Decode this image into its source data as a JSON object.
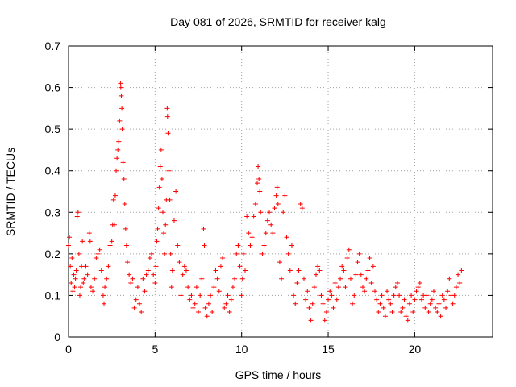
{
  "chart_data": {
    "type": "scatter",
    "title": "Day 081 of 2026, SRMTID for receiver kalg",
    "xlabel": "GPS time / hours",
    "ylabel": "SRMTID / TECUs",
    "xlim": [
      0,
      24.5
    ],
    "ylim": [
      0,
      0.7
    ],
    "xticks": [
      0,
      5,
      10,
      15,
      20
    ],
    "xtick_labels": [
      "0",
      "5",
      "10",
      "15",
      "20"
    ],
    "yticks": [
      0,
      0.1,
      0.2,
      0.3,
      0.4,
      0.5,
      0.6,
      0.7
    ],
    "ytick_labels": [
      "0",
      "0.1",
      "0.2",
      "0.3",
      "0.4",
      "0.5",
      "0.6",
      "0.7"
    ],
    "grid": true,
    "marker": "+",
    "color": "#ff0000",
    "series": [
      {
        "name": "SRMTID",
        "points": [
          [
            0.0,
            0.22
          ],
          [
            0.05,
            0.24
          ],
          [
            0.1,
            0.17
          ],
          [
            0.15,
            0.13
          ],
          [
            0.2,
            0.19
          ],
          [
            0.25,
            0.11
          ],
          [
            0.3,
            0.15
          ],
          [
            0.35,
            0.12
          ],
          [
            0.4,
            0.14
          ],
          [
            0.45,
            0.16
          ],
          [
            0.5,
            0.29
          ],
          [
            0.55,
            0.3
          ],
          [
            0.6,
            0.2
          ],
          [
            0.65,
            0.1
          ],
          [
            0.7,
            0.12
          ],
          [
            0.75,
            0.17
          ],
          [
            0.8,
            0.23
          ],
          [
            0.85,
            0.13
          ],
          [
            0.9,
            0.14
          ],
          [
            1.0,
            0.17
          ],
          [
            1.1,
            0.15
          ],
          [
            1.2,
            0.25
          ],
          [
            1.25,
            0.23
          ],
          [
            1.3,
            0.12
          ],
          [
            1.4,
            0.11
          ],
          [
            1.5,
            0.14
          ],
          [
            1.6,
            0.19
          ],
          [
            1.7,
            0.2
          ],
          [
            1.8,
            0.21
          ],
          [
            1.9,
            0.16
          ],
          [
            2.0,
            0.1
          ],
          [
            2.05,
            0.08
          ],
          [
            2.1,
            0.12
          ],
          [
            2.2,
            0.14
          ],
          [
            2.3,
            0.17
          ],
          [
            2.4,
            0.22
          ],
          [
            2.5,
            0.23
          ],
          [
            2.55,
            0.27
          ],
          [
            2.6,
            0.33
          ],
          [
            2.65,
            0.27
          ],
          [
            2.7,
            0.34
          ],
          [
            2.75,
            0.4
          ],
          [
            2.8,
            0.43
          ],
          [
            2.85,
            0.45
          ],
          [
            2.9,
            0.47
          ],
          [
            2.95,
            0.52
          ],
          [
            3.0,
            0.61
          ],
          [
            3.02,
            0.6
          ],
          [
            3.05,
            0.58
          ],
          [
            3.08,
            0.55
          ],
          [
            3.1,
            0.5
          ],
          [
            3.15,
            0.42
          ],
          [
            3.2,
            0.38
          ],
          [
            3.25,
            0.32
          ],
          [
            3.3,
            0.26
          ],
          [
            3.35,
            0.22
          ],
          [
            3.4,
            0.18
          ],
          [
            3.5,
            0.15
          ],
          [
            3.6,
            0.13
          ],
          [
            3.7,
            0.14
          ],
          [
            3.8,
            0.07
          ],
          [
            3.9,
            0.09
          ],
          [
            4.0,
            0.12
          ],
          [
            4.1,
            0.08
          ],
          [
            4.2,
            0.06
          ],
          [
            4.3,
            0.14
          ],
          [
            4.4,
            0.11
          ],
          [
            4.5,
            0.15
          ],
          [
            4.6,
            0.16
          ],
          [
            4.7,
            0.19
          ],
          [
            4.8,
            0.2
          ],
          [
            4.9,
            0.15
          ],
          [
            5.0,
            0.13
          ],
          [
            5.05,
            0.17
          ],
          [
            5.1,
            0.23
          ],
          [
            5.15,
            0.26
          ],
          [
            5.2,
            0.31
          ],
          [
            5.25,
            0.36
          ],
          [
            5.3,
            0.41
          ],
          [
            5.35,
            0.45
          ],
          [
            5.4,
            0.38
          ],
          [
            5.45,
            0.3
          ],
          [
            5.5,
            0.25
          ],
          [
            5.55,
            0.2
          ],
          [
            5.6,
            0.27
          ],
          [
            5.65,
            0.33
          ],
          [
            5.7,
            0.55
          ],
          [
            5.72,
            0.53
          ],
          [
            5.75,
            0.49
          ],
          [
            5.8,
            0.4
          ],
          [
            5.85,
            0.33
          ],
          [
            5.9,
            0.2
          ],
          [
            5.95,
            0.12
          ],
          [
            6.0,
            0.16
          ],
          [
            6.1,
            0.28
          ],
          [
            6.2,
            0.35
          ],
          [
            6.3,
            0.22
          ],
          [
            6.4,
            0.18
          ],
          [
            6.5,
            0.1
          ],
          [
            6.6,
            0.15
          ],
          [
            6.7,
            0.17
          ],
          [
            6.8,
            0.16
          ],
          [
            6.9,
            0.12
          ],
          [
            7.0,
            0.09
          ],
          [
            7.1,
            0.1
          ],
          [
            7.2,
            0.07
          ],
          [
            7.3,
            0.08
          ],
          [
            7.4,
            0.12
          ],
          [
            7.5,
            0.06
          ],
          [
            7.6,
            0.1
          ],
          [
            7.7,
            0.14
          ],
          [
            7.8,
            0.26
          ],
          [
            7.85,
            0.22
          ],
          [
            7.9,
            0.07
          ],
          [
            8.0,
            0.05
          ],
          [
            8.1,
            0.08
          ],
          [
            8.2,
            0.1
          ],
          [
            8.3,
            0.06
          ],
          [
            8.4,
            0.12
          ],
          [
            8.5,
            0.16
          ],
          [
            8.6,
            0.14
          ],
          [
            8.7,
            0.11
          ],
          [
            8.8,
            0.17
          ],
          [
            8.9,
            0.19
          ],
          [
            9.0,
            0.07
          ],
          [
            9.1,
            0.08
          ],
          [
            9.2,
            0.1
          ],
          [
            9.3,
            0.06
          ],
          [
            9.4,
            0.09
          ],
          [
            9.5,
            0.12
          ],
          [
            9.6,
            0.14
          ],
          [
            9.7,
            0.2
          ],
          [
            9.8,
            0.22
          ],
          [
            9.9,
            0.17
          ],
          [
            10.0,
            0.1
          ],
          [
            10.05,
            0.14
          ],
          [
            10.1,
            0.2
          ],
          [
            10.2,
            0.16
          ],
          [
            10.3,
            0.29
          ],
          [
            10.4,
            0.25
          ],
          [
            10.5,
            0.22
          ],
          [
            10.6,
            0.24
          ],
          [
            10.7,
            0.29
          ],
          [
            10.8,
            0.32
          ],
          [
            10.9,
            0.37
          ],
          [
            10.95,
            0.41
          ],
          [
            11.0,
            0.38
          ],
          [
            11.05,
            0.35
          ],
          [
            11.1,
            0.3
          ],
          [
            11.2,
            0.2
          ],
          [
            11.3,
            0.22
          ],
          [
            11.4,
            0.25
          ],
          [
            11.5,
            0.28
          ],
          [
            11.6,
            0.3
          ],
          [
            11.7,
            0.27
          ],
          [
            11.8,
            0.25
          ],
          [
            11.9,
            0.31
          ],
          [
            12.0,
            0.34
          ],
          [
            12.05,
            0.36
          ],
          [
            12.1,
            0.32
          ],
          [
            12.2,
            0.18
          ],
          [
            12.3,
            0.14
          ],
          [
            12.4,
            0.3
          ],
          [
            12.5,
            0.34
          ],
          [
            12.6,
            0.24
          ],
          [
            12.7,
            0.2
          ],
          [
            12.8,
            0.16
          ],
          [
            12.9,
            0.22
          ],
          [
            13.0,
            0.1
          ],
          [
            13.1,
            0.08
          ],
          [
            13.2,
            0.13
          ],
          [
            13.3,
            0.16
          ],
          [
            13.4,
            0.32
          ],
          [
            13.5,
            0.31
          ],
          [
            13.6,
            0.14
          ],
          [
            13.7,
            0.09
          ],
          [
            13.8,
            0.11
          ],
          [
            13.9,
            0.07
          ],
          [
            14.0,
            0.04
          ],
          [
            14.1,
            0.08
          ],
          [
            14.2,
            0.12
          ],
          [
            14.3,
            0.15
          ],
          [
            14.4,
            0.17
          ],
          [
            14.5,
            0.16
          ],
          [
            14.6,
            0.1
          ],
          [
            14.7,
            0.08
          ],
          [
            14.8,
            0.04
          ],
          [
            14.9,
            0.06
          ],
          [
            15.0,
            0.09
          ],
          [
            15.1,
            0.11
          ],
          [
            15.2,
            0.1
          ],
          [
            15.3,
            0.07
          ],
          [
            15.4,
            0.13
          ],
          [
            15.5,
            0.09
          ],
          [
            15.6,
            0.12
          ],
          [
            15.7,
            0.14
          ],
          [
            15.8,
            0.17
          ],
          [
            15.9,
            0.16
          ],
          [
            16.0,
            0.12
          ],
          [
            16.1,
            0.19
          ],
          [
            16.2,
            0.21
          ],
          [
            16.3,
            0.14
          ],
          [
            16.4,
            0.08
          ],
          [
            16.5,
            0.1
          ],
          [
            16.6,
            0.15
          ],
          [
            16.7,
            0.18
          ],
          [
            16.8,
            0.2
          ],
          [
            16.9,
            0.15
          ],
          [
            17.0,
            0.12
          ],
          [
            17.1,
            0.11
          ],
          [
            17.2,
            0.14
          ],
          [
            17.3,
            0.16
          ],
          [
            17.4,
            0.19
          ],
          [
            17.5,
            0.13
          ],
          [
            17.6,
            0.17
          ],
          [
            17.7,
            0.11
          ],
          [
            17.8,
            0.09
          ],
          [
            17.9,
            0.06
          ],
          [
            18.0,
            0.08
          ],
          [
            18.1,
            0.1
          ],
          [
            18.2,
            0.07
          ],
          [
            18.3,
            0.05
          ],
          [
            18.4,
            0.11
          ],
          [
            18.5,
            0.09
          ],
          [
            18.6,
            0.08
          ],
          [
            18.7,
            0.06
          ],
          [
            18.8,
            0.1
          ],
          [
            18.9,
            0.12
          ],
          [
            19.0,
            0.13
          ],
          [
            19.1,
            0.1
          ],
          [
            19.2,
            0.06
          ],
          [
            19.3,
            0.07
          ],
          [
            19.4,
            0.09
          ],
          [
            19.5,
            0.05
          ],
          [
            19.6,
            0.04
          ],
          [
            19.7,
            0.08
          ],
          [
            19.8,
            0.1
          ],
          [
            19.9,
            0.06
          ],
          [
            20.0,
            0.09
          ],
          [
            20.1,
            0.11
          ],
          [
            20.2,
            0.12
          ],
          [
            20.3,
            0.13
          ],
          [
            20.4,
            0.09
          ],
          [
            20.5,
            0.1
          ],
          [
            20.6,
            0.07
          ],
          [
            20.7,
            0.1
          ],
          [
            20.8,
            0.06
          ],
          [
            20.9,
            0.08
          ],
          [
            21.0,
            0.09
          ],
          [
            21.1,
            0.11
          ],
          [
            21.2,
            0.07
          ],
          [
            21.3,
            0.06
          ],
          [
            21.4,
            0.08
          ],
          [
            21.5,
            0.05
          ],
          [
            21.6,
            0.1
          ],
          [
            21.7,
            0.09
          ],
          [
            21.8,
            0.07
          ],
          [
            21.9,
            0.11
          ],
          [
            22.0,
            0.14
          ],
          [
            22.1,
            0.1
          ],
          [
            22.2,
            0.08
          ],
          [
            22.3,
            0.1
          ],
          [
            22.4,
            0.12
          ],
          [
            22.5,
            0.15
          ],
          [
            22.6,
            0.13
          ],
          [
            22.7,
            0.16
          ]
        ]
      }
    ]
  }
}
